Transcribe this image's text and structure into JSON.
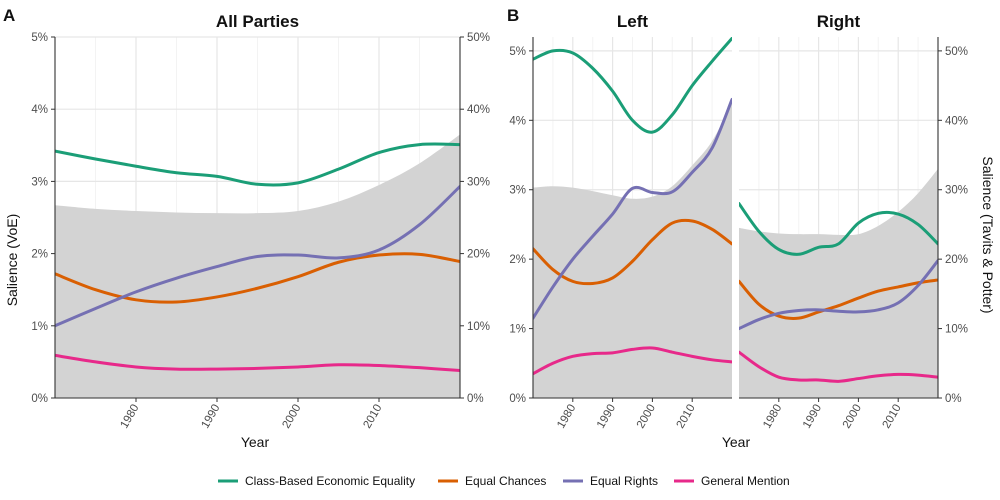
{
  "legend": [
    {
      "name": "Class-Based Economic Equality",
      "color": "#1b9e77"
    },
    {
      "name": "Equal Chances",
      "color": "#d95f02"
    },
    {
      "name": "Equal Rights",
      "color": "#7570b3"
    },
    {
      "name": "General Mention",
      "color": "#e7298a"
    }
  ],
  "band_color": "#d3d3d3",
  "chart_data": [
    {
      "type": "line",
      "panel_letter": "A",
      "title": "All Parties",
      "xlabel": "Year",
      "ylabel": "Salience (VoE)",
      "y2label": "",
      "xlim": [
        1970,
        2020
      ],
      "ylim": [
        0,
        5
      ],
      "y2lim": [
        0,
        50
      ],
      "x_ticks": [
        1980,
        1990,
        2000,
        2010
      ],
      "y_ticks": [
        "0%",
        "1%",
        "2%",
        "3%",
        "4%",
        "5%"
      ],
      "y2_ticks": [
        "0%",
        "10%",
        "20%",
        "30%",
        "40%",
        "50%"
      ],
      "area": {
        "name": "Salience (Tavits & Potter)",
        "x": [
          1970,
          1975,
          1980,
          1985,
          1990,
          1995,
          2000,
          2005,
          2010,
          2015,
          2020
        ],
        "y": [
          26.7,
          26.2,
          25.9,
          25.7,
          25.6,
          25.6,
          25.9,
          27.2,
          29.5,
          32.5,
          36.5
        ]
      },
      "series": [
        {
          "name": "Class-Based Economic Equality",
          "x": [
            1970,
            1975,
            1980,
            1985,
            1990,
            1995,
            2000,
            2005,
            2010,
            2015,
            2020
          ],
          "y": [
            3.42,
            3.31,
            3.21,
            3.12,
            3.07,
            2.96,
            2.98,
            3.17,
            3.4,
            3.51,
            3.51
          ]
        },
        {
          "name": "Equal Chances",
          "x": [
            1970,
            1975,
            1980,
            1985,
            1990,
            1995,
            2000,
            2005,
            2010,
            2015,
            2020
          ],
          "y": [
            1.72,
            1.5,
            1.36,
            1.33,
            1.4,
            1.52,
            1.68,
            1.88,
            1.98,
            1.99,
            1.89
          ]
        },
        {
          "name": "Equal Rights",
          "x": [
            1970,
            1975,
            1980,
            1985,
            1990,
            1995,
            2000,
            2005,
            2010,
            2015,
            2020
          ],
          "y": [
            1.0,
            1.24,
            1.47,
            1.66,
            1.82,
            1.96,
            1.98,
            1.94,
            2.05,
            2.4,
            2.93
          ]
        },
        {
          "name": "General Mention",
          "x": [
            1970,
            1975,
            1980,
            1985,
            1990,
            1995,
            2000,
            2005,
            2010,
            2015,
            2020
          ],
          "y": [
            0.59,
            0.5,
            0.43,
            0.4,
            0.4,
            0.41,
            0.43,
            0.46,
            0.45,
            0.42,
            0.38
          ]
        }
      ]
    },
    {
      "type": "line",
      "panel_letter": "B",
      "title": "Left",
      "xlabel": "Year",
      "ylabel": "",
      "y2label": "",
      "xlim": [
        1970,
        2020
      ],
      "ylim": [
        0,
        5.2
      ],
      "y2lim": [
        0,
        52
      ],
      "x_ticks": [
        1980,
        1990,
        2000,
        2010
      ],
      "y_ticks": [
        "0%",
        "1%",
        "2%",
        "3%",
        "4%",
        "5%"
      ],
      "y2_ticks": [],
      "area": {
        "name": "Salience (Tavits & Potter)",
        "x": [
          1970,
          1975,
          1980,
          1985,
          1990,
          1995,
          2000,
          2005,
          2010,
          2015,
          2020
        ],
        "y": [
          30.3,
          30.5,
          30.3,
          29.8,
          29.2,
          28.7,
          29.0,
          30.5,
          33.5,
          37.0,
          42.5
        ]
      },
      "series": [
        {
          "name": "Class-Based Economic Equality",
          "x": [
            1970,
            1975,
            1980,
            1985,
            1990,
            1995,
            2000,
            2005,
            2010,
            2015,
            2020
          ],
          "y": [
            4.88,
            5.0,
            4.97,
            4.75,
            4.42,
            4.0,
            3.83,
            4.08,
            4.5,
            4.85,
            5.18
          ]
        },
        {
          "name": "Equal Chances",
          "x": [
            1970,
            1975,
            1980,
            1985,
            1990,
            1995,
            2000,
            2005,
            2010,
            2015,
            2020
          ],
          "y": [
            2.15,
            1.85,
            1.68,
            1.65,
            1.73,
            1.97,
            2.28,
            2.52,
            2.55,
            2.43,
            2.22
          ]
        },
        {
          "name": "Equal Rights",
          "x": [
            1970,
            1975,
            1980,
            1985,
            1990,
            1995,
            2000,
            2005,
            2010,
            2015,
            2020
          ],
          "y": [
            1.15,
            1.6,
            2.0,
            2.33,
            2.65,
            3.02,
            2.96,
            2.97,
            3.25,
            3.6,
            4.3
          ]
        },
        {
          "name": "General Mention",
          "x": [
            1970,
            1975,
            1980,
            1985,
            1990,
            1995,
            2000,
            2005,
            2010,
            2015,
            2020
          ],
          "y": [
            0.35,
            0.5,
            0.6,
            0.64,
            0.65,
            0.7,
            0.72,
            0.66,
            0.6,
            0.55,
            0.52
          ]
        }
      ]
    },
    {
      "type": "line",
      "panel_letter": "",
      "title": "Right",
      "xlabel": "",
      "ylabel": "",
      "y2label": "Salience (Tavits & Potter)",
      "xlim": [
        1970,
        2020
      ],
      "ylim": [
        0,
        5.2
      ],
      "y2lim": [
        0,
        52
      ],
      "x_ticks": [
        1980,
        1990,
        2000,
        2010
      ],
      "y_ticks": [],
      "y2_ticks": [
        "0%",
        "10%",
        "20%",
        "30%",
        "40%",
        "50%"
      ],
      "area": {
        "name": "Salience (Tavits & Potter)",
        "x": [
          1970,
          1975,
          1980,
          1985,
          1990,
          1995,
          2000,
          2005,
          2010,
          2015,
          2020
        ],
        "y": [
          24.5,
          24.0,
          23.7,
          23.6,
          23.6,
          23.5,
          23.6,
          24.8,
          26.8,
          29.5,
          33.0
        ]
      },
      "series": [
        {
          "name": "Class-Based Economic Equality",
          "x": [
            1970,
            1975,
            1980,
            1985,
            1990,
            1995,
            2000,
            2005,
            2010,
            2015,
            2020
          ],
          "y": [
            2.8,
            2.4,
            2.14,
            2.07,
            2.17,
            2.22,
            2.52,
            2.66,
            2.65,
            2.5,
            2.22
          ]
        },
        {
          "name": "Equal Chances",
          "x": [
            1970,
            1975,
            1980,
            1985,
            1990,
            1995,
            2000,
            2005,
            2010,
            2015,
            2020
          ],
          "y": [
            1.68,
            1.35,
            1.18,
            1.15,
            1.24,
            1.33,
            1.44,
            1.54,
            1.6,
            1.66,
            1.7
          ]
        },
        {
          "name": "Equal Rights",
          "x": [
            1970,
            1975,
            1980,
            1985,
            1990,
            1995,
            2000,
            2005,
            2010,
            2015,
            2020
          ],
          "y": [
            1.0,
            1.13,
            1.22,
            1.26,
            1.27,
            1.25,
            1.24,
            1.27,
            1.37,
            1.62,
            1.98
          ]
        },
        {
          "name": "General Mention",
          "x": [
            1970,
            1975,
            1980,
            1985,
            1990,
            1995,
            2000,
            2005,
            2010,
            2015,
            2020
          ],
          "y": [
            0.66,
            0.45,
            0.3,
            0.26,
            0.26,
            0.24,
            0.28,
            0.32,
            0.34,
            0.33,
            0.3
          ]
        }
      ]
    }
  ]
}
